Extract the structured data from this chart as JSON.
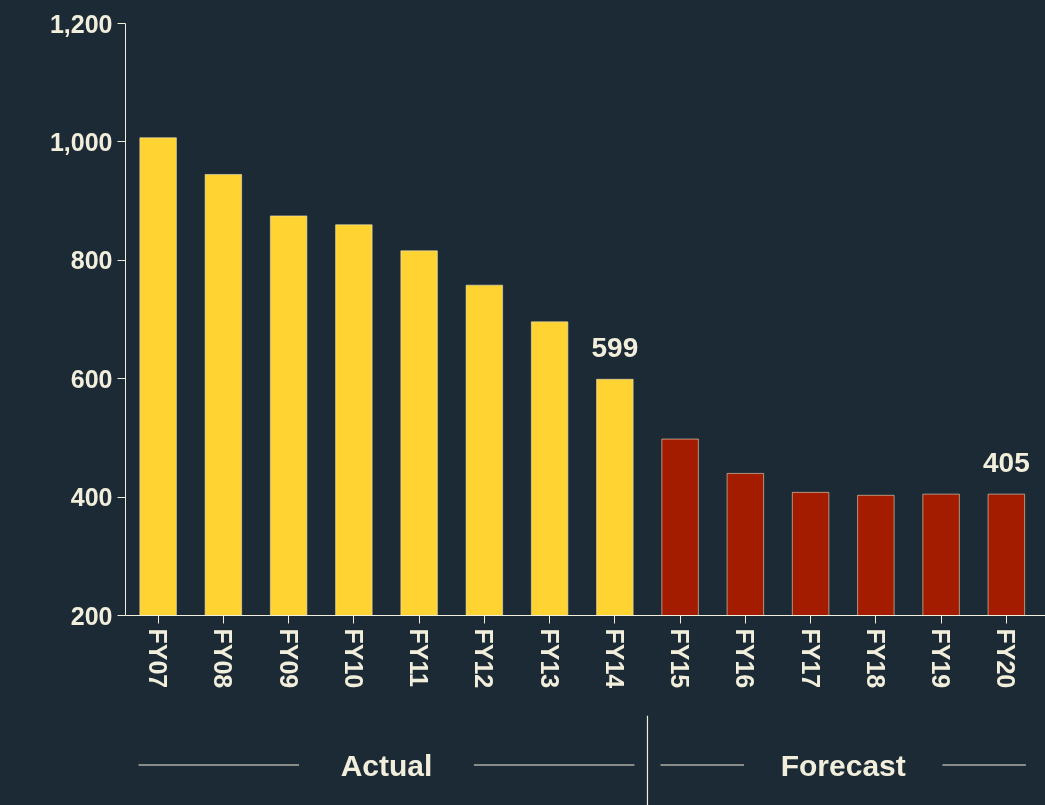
{
  "chart_data": {
    "type": "bar",
    "categories": [
      "FY07",
      "FY08",
      "FY09",
      "FY10",
      "FY11",
      "FY12",
      "FY13",
      "FY14",
      "FY15",
      "FY16",
      "FY17",
      "FY18",
      "FY19",
      "FY20"
    ],
    "values": [
      1007,
      945,
      875,
      860,
      816,
      758,
      696,
      599,
      498,
      440,
      408,
      403,
      405,
      405
    ],
    "colors": [
      "#ffd432",
      "#ffd432",
      "#ffd432",
      "#ffd432",
      "#ffd432",
      "#ffd432",
      "#ffd432",
      "#ffd432",
      "#a31c00",
      "#a31c00",
      "#a31c00",
      "#a31c00",
      "#a31c00",
      "#a31c00"
    ],
    "value_labels": [
      null,
      null,
      null,
      null,
      null,
      null,
      null,
      "599",
      null,
      null,
      null,
      null,
      null,
      "405"
    ],
    "ylim": [
      200,
      1200
    ],
    "yticks": [
      200,
      400,
      600,
      800,
      {
        "value": 1000,
        "label": "1,000"
      },
      {
        "value": 1200,
        "label": "1,200"
      }
    ],
    "annotations": [
      "Actual",
      "Forecast"
    ],
    "grid": false
  }
}
